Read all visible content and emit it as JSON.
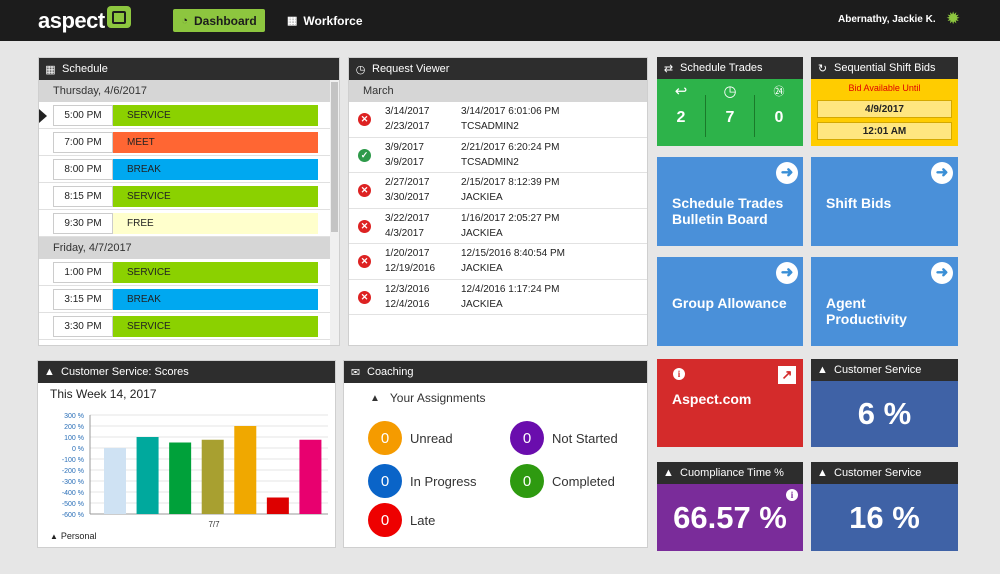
{
  "app": {
    "logo_text": "aspect"
  },
  "nav": {
    "dashboard_label": "Dashboard",
    "workforce_label": "Workforce",
    "user_name": "Abernathy, Jackie K."
  },
  "schedule": {
    "title": "Schedule",
    "days": [
      {
        "label": "Thursday, 4/6/2017",
        "rows": [
          {
            "time": "5:00 PM",
            "activity": "SERVICE",
            "color": "#8bd100",
            "text_color": "#222"
          },
          {
            "time": "7:00 PM",
            "activity": "MEET",
            "color": "#ff6633",
            "text_color": "#222"
          },
          {
            "time": "8:00 PM",
            "activity": "BREAK",
            "color": "#00a8f0",
            "text_color": "#222"
          },
          {
            "time": "8:15 PM",
            "activity": "SERVICE",
            "color": "#8bd100",
            "text_color": "#222"
          },
          {
            "time": "9:30 PM",
            "activity": "FREE",
            "color": "#ffffcc",
            "text_color": "#222"
          }
        ]
      },
      {
        "label": "Friday, 4/7/2017",
        "rows": [
          {
            "time": "1:00 PM",
            "activity": "SERVICE",
            "color": "#8bd100",
            "text_color": "#222"
          },
          {
            "time": "3:15 PM",
            "activity": "BREAK",
            "color": "#00a8f0",
            "text_color": "#222"
          },
          {
            "time": "3:30 PM",
            "activity": "SERVICE",
            "color": "#8bd100",
            "text_color": "#222"
          }
        ]
      }
    ]
  },
  "request_viewer": {
    "title": "Request Viewer",
    "month": "March",
    "rows": [
      {
        "status": "denied",
        "start": "3/14/2017",
        "end": "2/23/2017",
        "submitted": "3/14/2017 6:01:06 PM",
        "by": "TCSADMIN2"
      },
      {
        "status": "approved",
        "start": "3/9/2017",
        "end": "3/9/2017",
        "submitted": "2/21/2017 6:20:24 PM",
        "by": "TCSADMIN2"
      },
      {
        "status": "denied",
        "start": "2/27/2017",
        "end": "3/30/2017",
        "submitted": "2/15/2017 8:12:39 PM",
        "by": "JACKIEA"
      },
      {
        "status": "denied",
        "start": "3/22/2017",
        "end": "4/3/2017",
        "submitted": "1/16/2017 2:05:27 PM",
        "by": "JACKIEA"
      },
      {
        "status": "denied",
        "start": "1/20/2017",
        "end": "12/19/2016",
        "submitted": "12/15/2016 8:40:54 PM",
        "by": "JACKIEA"
      },
      {
        "status": "denied",
        "start": "12/3/2016",
        "end": "12/4/2016",
        "submitted": "12/4/2016 1:17:24 PM",
        "by": "JACKIEA"
      }
    ]
  },
  "schedule_trades": {
    "title": "Schedule Trades",
    "items": [
      {
        "icon": "reply-icon",
        "value": "2"
      },
      {
        "icon": "clock-icon",
        "value": "7"
      },
      {
        "icon": "24h-icon",
        "value": "0"
      }
    ]
  },
  "sequential_bids": {
    "title": "Sequential Shift Bids",
    "notice": "Bid Available Until",
    "date": "4/9/2017",
    "time": "12:01 AM"
  },
  "tiles": {
    "bulletin": "Schedule Trades Bulletin Board",
    "shift_bids": "Shift Bids",
    "group_allowance": "Group Allowance",
    "agent_productivity": "Agent Productivity",
    "aspect_com": "Aspect.com"
  },
  "customer_service_1": {
    "title": "Customer Service",
    "value": "6 %"
  },
  "compliance": {
    "title": "Cuompliance Time %",
    "value": "66.57 %"
  },
  "customer_service_2": {
    "title": "Customer Service",
    "value": "16 %"
  },
  "scores": {
    "title": "Customer Service: Scores",
    "subtitle": "This Week 14, 2017",
    "legend": "Personal"
  },
  "coaching": {
    "title": "Coaching",
    "assignments_label": "Your Assignments",
    "items": [
      {
        "label": "Unread",
        "value": "0",
        "color": "#f59b00"
      },
      {
        "label": "Not Started",
        "value": "0",
        "color": "#6a0dad"
      },
      {
        "label": "In Progress",
        "value": "0",
        "color": "#0a64c8"
      },
      {
        "label": "Completed",
        "value": "0",
        "color": "#2e9a10"
      },
      {
        "label": "Late",
        "value": "0",
        "color": "#ee0000"
      }
    ]
  },
  "colors": {
    "accent": "#8dc63f",
    "trades_green": "#2db34a",
    "tile_blue": "#4a90d9",
    "bids_yellow": "#ffcc00",
    "aspect_red": "#d42b2b",
    "cs_blue": "#3f62a6",
    "compliance_purple": "#7a2c9a"
  },
  "chart_data": {
    "type": "bar",
    "title": "This Week 14, 2017",
    "categories": [
      "7/7"
    ],
    "xlabel": "",
    "ylabel": "",
    "ylim": [
      -600,
      300
    ],
    "yticks": [
      "300 %",
      "200 %",
      "100 %",
      "0 %",
      "-100 %",
      "-200 %",
      "-300 %",
      "-400 %",
      "-500 %",
      "-600 %"
    ],
    "grid": true,
    "legend": "bottom-left",
    "series": [
      {
        "values": [
          0
        ],
        "color": "#cfe2f3"
      },
      {
        "values": [
          100
        ],
        "color": "#00a99d"
      },
      {
        "values": [
          50
        ],
        "color": "#00a13a"
      },
      {
        "values": [
          75
        ],
        "color": "#a8a030"
      },
      {
        "values": [
          200
        ],
        "color": "#f0a800"
      },
      {
        "values": [
          -450
        ],
        "color": "#dd0000"
      },
      {
        "values": [
          75
        ],
        "color": "#e8006f"
      }
    ],
    "bar_floor": -600,
    "legend_entries": [
      "Personal"
    ]
  }
}
